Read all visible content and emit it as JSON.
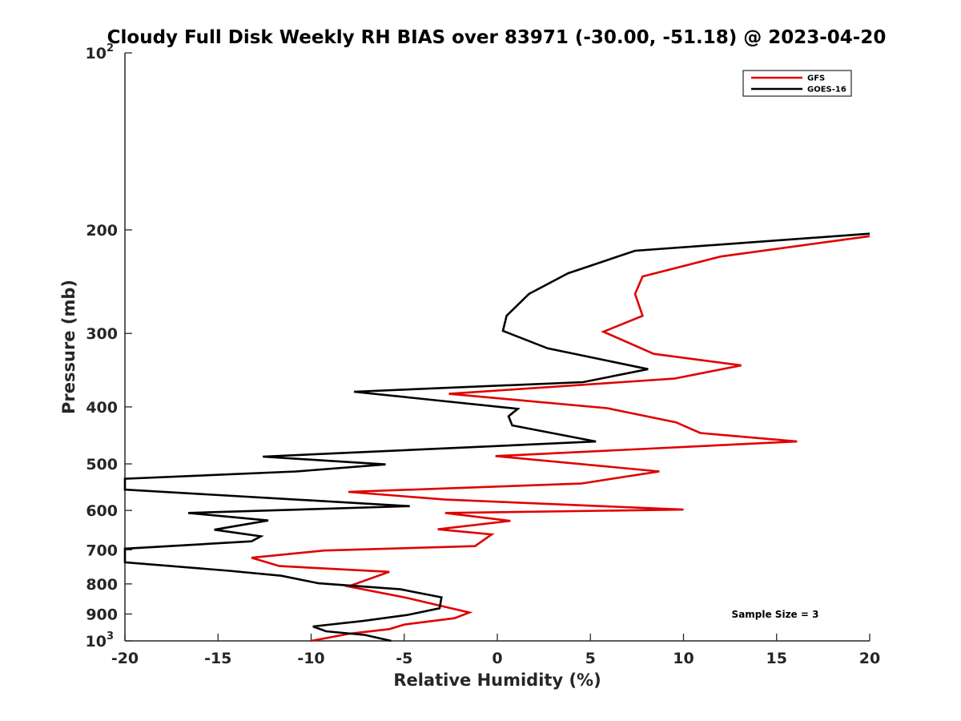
{
  "chart_data": {
    "type": "line",
    "title": "Cloudy Full Disk Weekly RH BIAS over 83971 (-30.00, -51.18) @ 2023-04-20",
    "xlabel": "Relative Humidity (%)",
    "ylabel": "Pressure (mb)",
    "xlim": [
      -20,
      20
    ],
    "ylim": [
      100,
      1000
    ],
    "y_scale": "log",
    "y_reversed": true,
    "x_ticks": [
      "-20",
      "-15",
      "-10",
      "-5",
      "0",
      "5",
      "10",
      "15",
      "20"
    ],
    "y_ticks": [
      {
        "base": "10",
        "exp": "2",
        "value": 100
      },
      {
        "label": "200",
        "value": 200
      },
      {
        "label": "300",
        "value": 300
      },
      {
        "label": "400",
        "value": 400
      },
      {
        "label": "500",
        "value": 500
      },
      {
        "label": "600",
        "value": 600
      },
      {
        "label": "700",
        "value": 700
      },
      {
        "label": "800",
        "value": 800
      },
      {
        "label": "900",
        "value": 900
      },
      {
        "base": "10",
        "exp": "3",
        "value": 1000
      }
    ],
    "legend_position": "top-right",
    "annotation": "Sample Size = 3",
    "series": [
      {
        "name": "GFS",
        "color": "#e00000",
        "points": [
          [
            20.0,
            205
          ],
          [
            12.0,
            222
          ],
          [
            7.8,
            240
          ],
          [
            7.4,
            257
          ],
          [
            7.8,
            280
          ],
          [
            5.7,
            298
          ],
          [
            8.4,
            325
          ],
          [
            13.1,
            340
          ],
          [
            9.5,
            358
          ],
          [
            -2.6,
            380
          ],
          [
            5.9,
            402
          ],
          [
            9.6,
            425
          ],
          [
            10.9,
            443
          ],
          [
            16.1,
            458
          ],
          [
            -0.1,
            485
          ],
          [
            8.7,
            515
          ],
          [
            4.5,
            540
          ],
          [
            -8.0,
            558
          ],
          [
            -2.8,
            575
          ],
          [
            10.0,
            598
          ],
          [
            -2.8,
            606
          ],
          [
            0.7,
            625
          ],
          [
            -3.2,
            646
          ],
          [
            -0.3,
            659
          ],
          [
            -1.2,
            690
          ],
          [
            -9.3,
            702
          ],
          [
            -13.2,
            722
          ],
          [
            -11.7,
            746
          ],
          [
            -5.8,
            763
          ],
          [
            -8.0,
            808
          ],
          [
            -5.0,
            843
          ],
          [
            -1.5,
            895
          ],
          [
            -2.3,
            915
          ],
          [
            -5.0,
            938
          ],
          [
            -5.8,
            955
          ],
          [
            -7.9,
            972
          ],
          [
            -10.0,
            1000
          ]
        ]
      },
      {
        "name": "GOES-16",
        "color": "#000000",
        "points": [
          [
            20.0,
            203
          ],
          [
            7.4,
            217
          ],
          [
            3.8,
            237
          ],
          [
            1.7,
            257
          ],
          [
            0.5,
            280
          ],
          [
            0.3,
            297
          ],
          [
            2.7,
            318
          ],
          [
            8.1,
            345
          ],
          [
            4.6,
            363
          ],
          [
            -7.7,
            377
          ],
          [
            1.1,
            403
          ],
          [
            0.6,
            415
          ],
          [
            0.8,
            430
          ],
          [
            5.3,
            458
          ],
          [
            -12.6,
            486
          ],
          [
            -6.0,
            501
          ],
          [
            -10.8,
            515
          ],
          [
            -20.0,
            530
          ],
          [
            -20.0,
            553
          ],
          [
            -4.7,
            590
          ],
          [
            -16.6,
            606
          ],
          [
            -12.3,
            624
          ],
          [
            -15.2,
            647
          ],
          [
            -12.7,
            664
          ],
          [
            -13.2,
            677
          ],
          [
            -20.0,
            697
          ],
          [
            -20.0,
            735
          ],
          [
            -14.4,
            760
          ],
          [
            -11.6,
            775
          ],
          [
            -9.6,
            798
          ],
          [
            -5.2,
            817
          ],
          [
            -3.0,
            843
          ],
          [
            -3.1,
            880
          ],
          [
            -4.8,
            903
          ],
          [
            -7.2,
            925
          ],
          [
            -9.9,
            945
          ],
          [
            -9.2,
            963
          ],
          [
            -7.1,
            977
          ],
          [
            -5.7,
            1000
          ]
        ]
      }
    ]
  }
}
